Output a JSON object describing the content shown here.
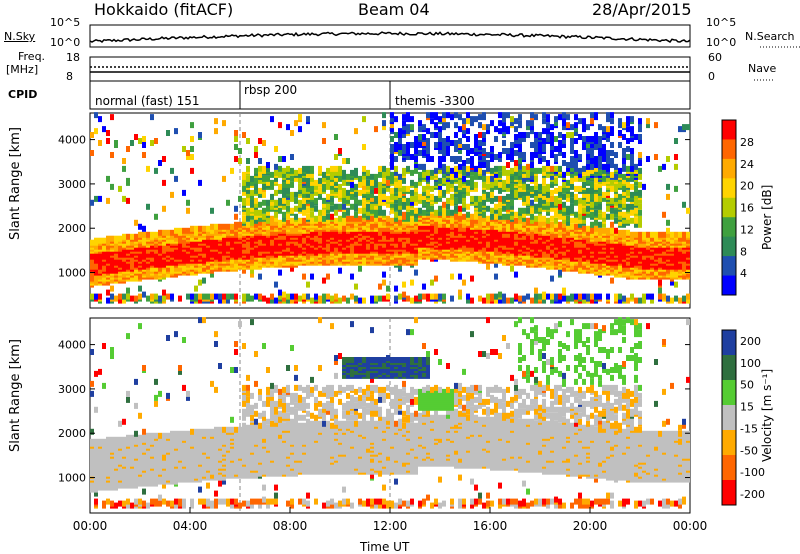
{
  "header": {
    "station": "Hokkaido (fitACF)",
    "beam": "Beam 04",
    "date": "28/Apr/2015"
  },
  "nsky": {
    "label": "N.Sky",
    "ticks": [
      "10^5",
      "10^0"
    ],
    "right_label": "N.Search",
    "right_ticks": [
      "10^5",
      "10^0"
    ]
  },
  "freq": {
    "label1": "Freq.",
    "label2": "[MHz]",
    "ticks": [
      "18",
      "8"
    ],
    "right_label": "Nave",
    "right_ticks": [
      "60",
      "0"
    ]
  },
  "cpid": {
    "label": "CPID",
    "segments": [
      {
        "text": "normal (fast) 151",
        "start_h": 0
      },
      {
        "text": "rbsp 200",
        "start_h": 6
      },
      {
        "text": "themis -3300",
        "start_h": 12
      }
    ]
  },
  "chart_data": [
    {
      "type": "heatmap",
      "name": "power",
      "ylabel": "Slant Range [km]",
      "xlim_h": [
        0,
        24
      ],
      "ylim": [
        200,
        4600
      ],
      "yticks": [
        "1000",
        "2000",
        "3000",
        "4000"
      ],
      "colorbar_label": "Power [dB]",
      "colorbar_ticks": [
        "28",
        "24",
        "20",
        "16",
        "12",
        "8",
        "4"
      ],
      "colors": [
        "#ff0000",
        "#ff6600",
        "#ffaa00",
        "#ffd400",
        "#b4cc00",
        "#3fa03f",
        "#2e8b57",
        "#1f4fb0",
        "#0000ff"
      ]
    },
    {
      "type": "heatmap",
      "name": "velocity",
      "ylabel": "Slant Range [km]",
      "xlabel": "Time UT",
      "xlim_h": [
        0,
        24
      ],
      "ylim": [
        200,
        4600
      ],
      "yticks": [
        "1000",
        "2000",
        "3000",
        "4000"
      ],
      "xticks": [
        "00:00",
        "04:00",
        "08:00",
        "12:00",
        "16:00",
        "20:00",
        "00:00"
      ],
      "colorbar_label": "Velocity [m s⁻¹]",
      "colorbar_ticks": [
        "200",
        "100",
        "50",
        "15",
        "-15",
        "-50",
        "-100",
        "-200"
      ],
      "colors": [
        "#1f3fa0",
        "#2f6f3f",
        "#55cc33",
        "#c0c0c0",
        "#ffaa00",
        "#ff6600",
        "#ff0000"
      ]
    }
  ]
}
